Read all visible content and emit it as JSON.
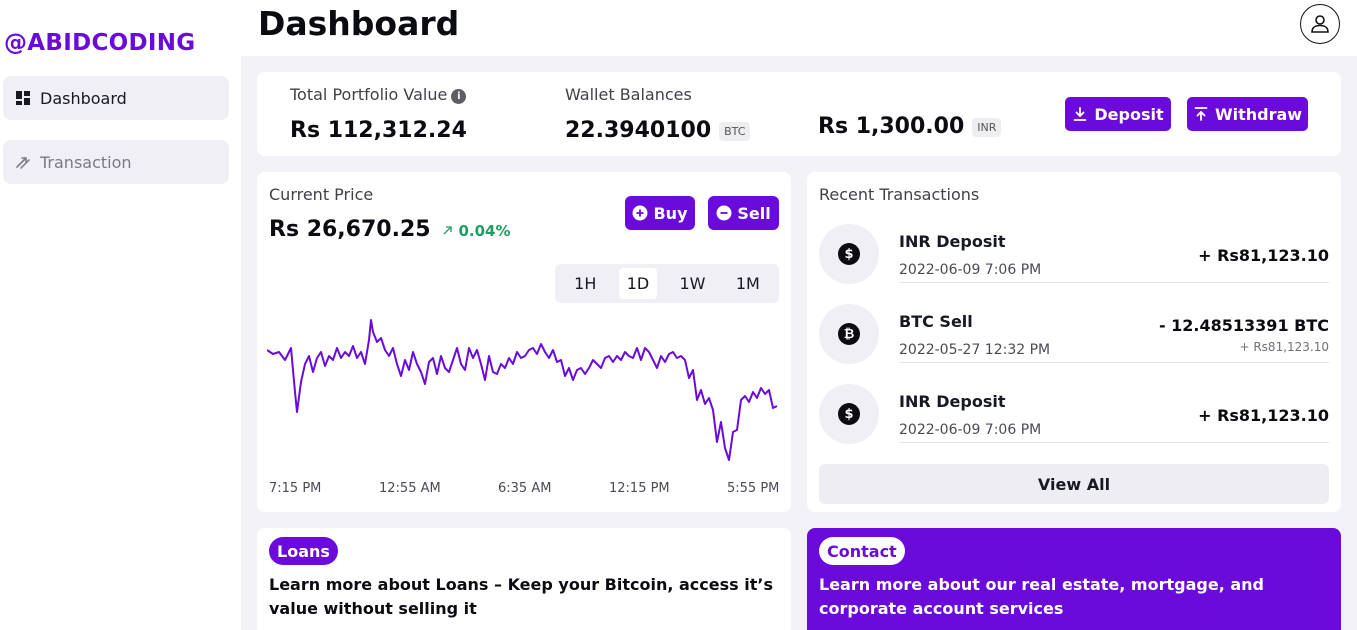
{
  "brand": {
    "name": "@ABIDCODING"
  },
  "sidebar": {
    "items": [
      {
        "label": "Dashboard",
        "icon": "dashboard-grid-icon",
        "active": true
      },
      {
        "label": "Transaction",
        "icon": "transfer-arrows-icon",
        "active": false
      }
    ]
  },
  "header": {
    "title": "Dashboard",
    "avatar_icon": "user-icon"
  },
  "portfolio": {
    "total_label": "Total Portfolio Value",
    "total_value": "Rs 112,312.24",
    "wallet_label": "Wallet Balances",
    "btc_value": "22.3940100",
    "btc_unit": "BTC",
    "inr_value": "Rs 1,300.00",
    "inr_unit": "INR",
    "deposit_label": "Deposit",
    "withdraw_label": "Withdraw"
  },
  "price": {
    "label": "Current Price",
    "value": "Rs 26,670.25",
    "change": "0.04%",
    "buy_label": "Buy",
    "sell_label": "Sell",
    "ranges": [
      "1H",
      "1D",
      "1W",
      "1M"
    ],
    "active_range": "1D",
    "x_labels": [
      "7:15 PM",
      "12:55 AM",
      "6:35 AM",
      "12:15 PM",
      "5:55 PM"
    ]
  },
  "transactions": {
    "title": "Recent Transactions",
    "items": [
      {
        "title": "INR Deposit",
        "date": "2022-06-09 7:06 PM",
        "amount": "+ Rs81,123.10",
        "sub": "",
        "icon": "dollar-icon"
      },
      {
        "title": "BTC Sell",
        "date": "2022-05-27 12:32 PM",
        "amount": "- 12.48513391 BTC",
        "sub": "+ Rs81,123.10",
        "icon": "bitcoin-icon"
      },
      {
        "title": "INR Deposit",
        "date": "2022-06-09 7:06 PM",
        "amount": "+ Rs81,123.10",
        "sub": "",
        "icon": "dollar-icon"
      }
    ],
    "view_all_label": "View All"
  },
  "loans": {
    "tag": "Loans",
    "text": "Learn more about Loans – Keep your Bitcoin, access it’s value without selling it"
  },
  "contact": {
    "tag": "Contact",
    "text": "Learn more about our real estate, mortgage, and corporate account services"
  },
  "colors": {
    "accent": "#6a0bdc",
    "positive": "#1e9e62",
    "background": "#f3f3f7"
  }
}
